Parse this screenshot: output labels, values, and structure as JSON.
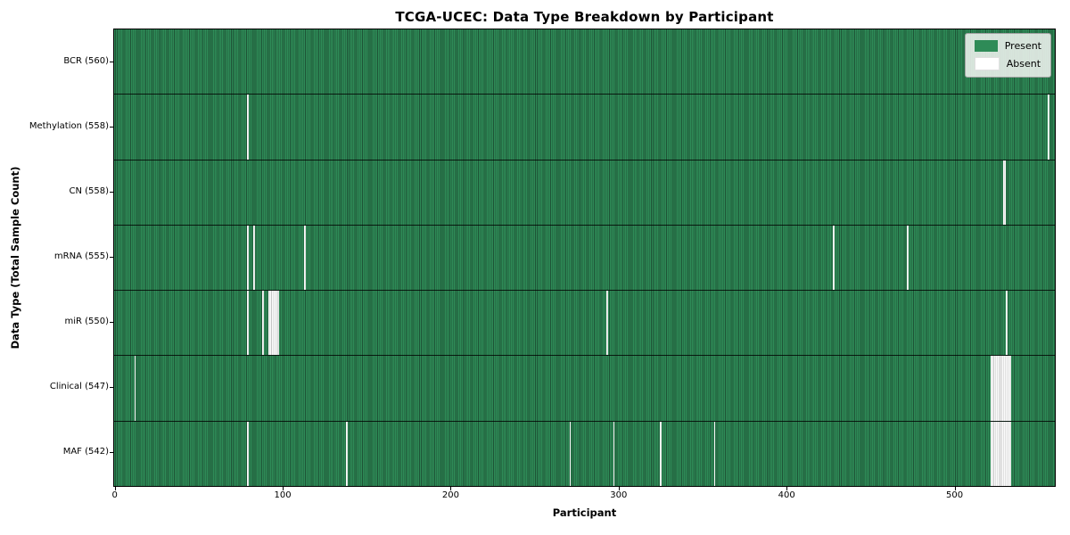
{
  "colors": {
    "present": "#2e8b57",
    "present_edge": "#1e5336",
    "absent": "#fbfbfb",
    "absent_edge": "#c6c6c6",
    "row_divider": "rgba(0,0,0,0.8)",
    "legend_bg": "#eff2ef",
    "border": "#000000"
  },
  "chart_data": {
    "type": "heatmap",
    "title": "TCGA-UCEC: Data Type Breakdown by Participant",
    "xlabel": "Participant",
    "ylabel": "Data Type (Total Sample Count)",
    "legend": {
      "present": "Present",
      "absent": "Absent"
    },
    "legend_position": "upper right",
    "x": {
      "n_participants": 560,
      "range": [
        0,
        559
      ],
      "ticks": [
        0,
        100,
        200,
        300,
        400,
        500
      ]
    },
    "rows": [
      {
        "name": "BCR",
        "label": "BCR (560)",
        "total_samples": 560,
        "absent_participants": []
      },
      {
        "name": "Methylation",
        "label": "Methylation (558)",
        "total_samples": 558,
        "absent_participants": [
          79,
          556
        ]
      },
      {
        "name": "CN",
        "label": "CN (558)",
        "total_samples": 558,
        "absent_participants": [
          529,
          530
        ]
      },
      {
        "name": "mRNA",
        "label": "mRNA (555)",
        "total_samples": 555,
        "absent_participants": [
          79,
          83,
          113,
          428,
          472
        ]
      },
      {
        "name": "miR",
        "label": "miR (550)",
        "total_samples": 550,
        "absent_participants": [
          79,
          88,
          92,
          93,
          94,
          95,
          96,
          97,
          293,
          531
        ]
      },
      {
        "name": "Clinical",
        "label": "Clinical (547)",
        "total_samples": 547,
        "absent_participants": [
          12,
          522,
          523,
          524,
          525,
          526,
          527,
          528,
          529,
          530,
          531,
          532,
          533
        ]
      },
      {
        "name": "MAF",
        "label": "MAF (542)",
        "total_samples": 542,
        "absent_participants": [
          79,
          138,
          271,
          297,
          325,
          357,
          522,
          523,
          524,
          525,
          526,
          527,
          528,
          529,
          530,
          531,
          532,
          533
        ]
      }
    ]
  }
}
